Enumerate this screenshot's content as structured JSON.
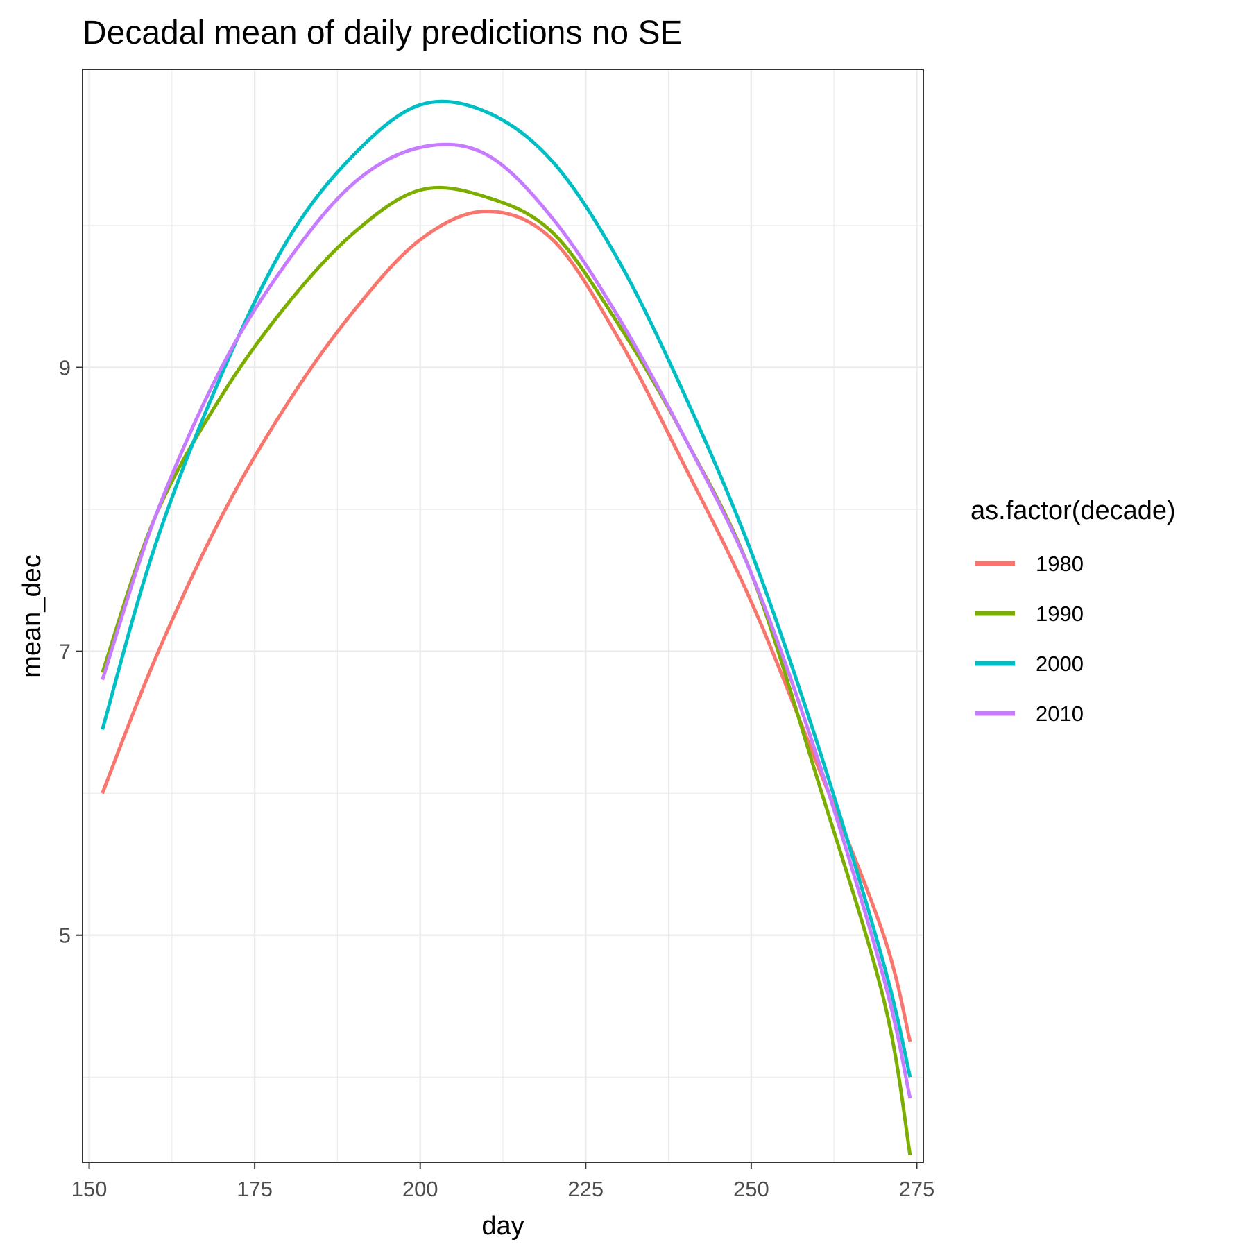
{
  "chart_data": {
    "type": "line",
    "title": "Decadal mean of daily predictions no SE",
    "xlabel": "day",
    "ylabel": "mean_dec",
    "xlim": [
      149,
      276
    ],
    "ylim": [
      3.4,
      11.1
    ],
    "x_ticks": [
      150,
      175,
      200,
      225,
      250,
      275
    ],
    "x_tick_labels": [
      "150",
      "175",
      "200",
      "225",
      "250",
      "275"
    ],
    "y_ticks": [
      5,
      7,
      9
    ],
    "y_tick_labels": [
      "5",
      "7",
      "9"
    ],
    "grid": true,
    "legend": {
      "title": "as.factor(decade)",
      "position": "right"
    },
    "series": [
      {
        "name": "1980",
        "color": "#F8766D",
        "points": [
          [
            152,
            6.0
          ],
          [
            160,
            6.95
          ],
          [
            170,
            7.95
          ],
          [
            180,
            8.75
          ],
          [
            190,
            9.4
          ],
          [
            200,
            9.9
          ],
          [
            210,
            10.1
          ],
          [
            220,
            9.9
          ],
          [
            230,
            9.2
          ],
          [
            240,
            8.3
          ],
          [
            250,
            7.35
          ],
          [
            260,
            6.2
          ],
          [
            270,
            5.0
          ],
          [
            274,
            4.25
          ]
        ]
      },
      {
        "name": "1990",
        "color": "#7CAE00",
        "points": [
          [
            152,
            6.85
          ],
          [
            160,
            7.95
          ],
          [
            170,
            8.8
          ],
          [
            180,
            9.45
          ],
          [
            190,
            9.95
          ],
          [
            200,
            10.25
          ],
          [
            210,
            10.2
          ],
          [
            220,
            9.95
          ],
          [
            230,
            9.3
          ],
          [
            240,
            8.5
          ],
          [
            250,
            7.55
          ],
          [
            260,
            6.1
          ],
          [
            270,
            4.55
          ],
          [
            274,
            3.45
          ]
        ]
      },
      {
        "name": "2000",
        "color": "#00BFC4",
        "points": [
          [
            152,
            6.45
          ],
          [
            160,
            7.75
          ],
          [
            170,
            8.95
          ],
          [
            180,
            9.9
          ],
          [
            190,
            10.5
          ],
          [
            200,
            10.85
          ],
          [
            210,
            10.8
          ],
          [
            220,
            10.45
          ],
          [
            230,
            9.75
          ],
          [
            240,
            8.8
          ],
          [
            250,
            7.7
          ],
          [
            260,
            6.35
          ],
          [
            270,
            4.8
          ],
          [
            274,
            4.0
          ]
        ]
      },
      {
        "name": "2010",
        "color": "#C77CFF",
        "points": [
          [
            152,
            6.8
          ],
          [
            160,
            7.95
          ],
          [
            170,
            9.0
          ],
          [
            180,
            9.75
          ],
          [
            190,
            10.3
          ],
          [
            200,
            10.55
          ],
          [
            210,
            10.5
          ],
          [
            220,
            10.05
          ],
          [
            230,
            9.35
          ],
          [
            240,
            8.5
          ],
          [
            250,
            7.55
          ],
          [
            260,
            6.25
          ],
          [
            270,
            4.7
          ],
          [
            274,
            3.85
          ]
        ]
      }
    ]
  }
}
